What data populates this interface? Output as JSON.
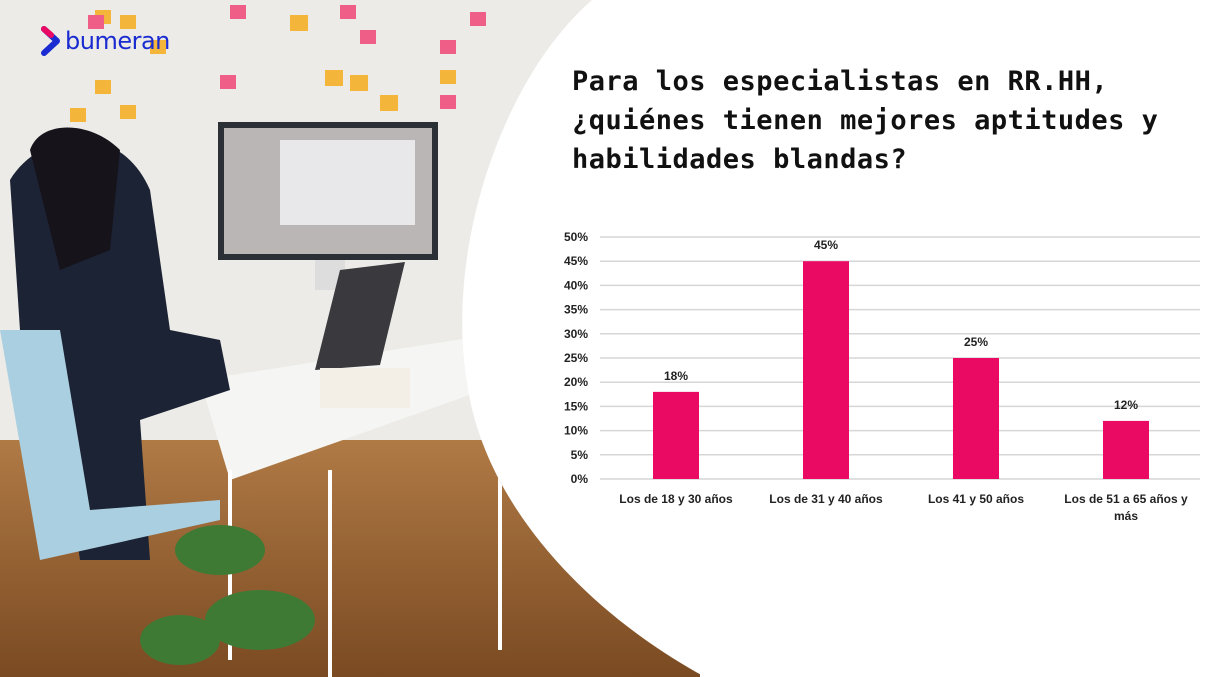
{
  "brand": {
    "logo_text": "bumeran",
    "logo_color": "#1a2bd1"
  },
  "title": "Para los especialistas en RR.HH, ¿quiénes tienen mejores aptitudes y habilidades blandas?",
  "chart_data": {
    "type": "bar",
    "title": "",
    "xlabel": "",
    "ylabel": "",
    "categories": [
      "Los de 18 y 30 años",
      "Los de 31 y 40 años",
      "Los 41 y 50 años",
      "Los de 51 a 65 años y más"
    ],
    "values": [
      18,
      45,
      25,
      12
    ],
    "data_labels": [
      "18%",
      "45%",
      "25%",
      "12%"
    ],
    "ylim": [
      0,
      50
    ],
    "yticks": [
      "0%",
      "5%",
      "10%",
      "15%",
      "20%",
      "25%",
      "30%",
      "35%",
      "40%",
      "45%",
      "50%"
    ],
    "grid": true,
    "legend": "none",
    "bar_color": "#ea0a64"
  }
}
